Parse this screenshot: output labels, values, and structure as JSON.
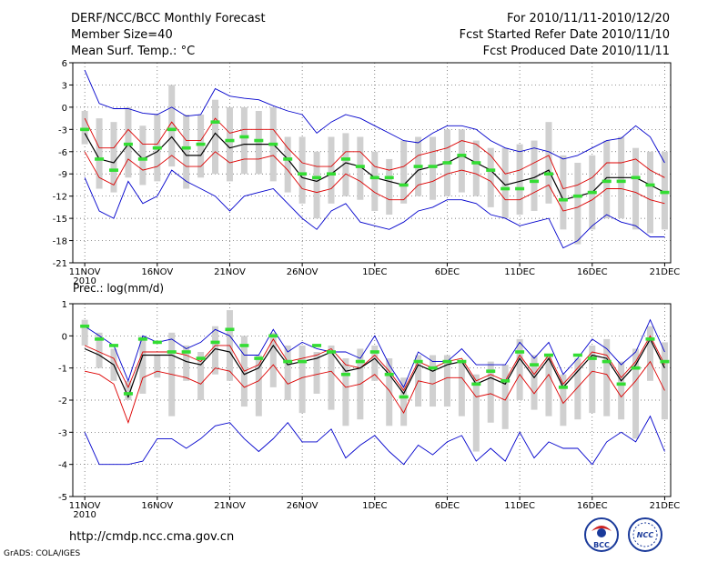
{
  "header": {
    "title": "DERF/NCC/BCC Monthly Forecast",
    "member_size": "Member Size=40",
    "variable": "Mean Surf. Temp.: °C",
    "period": "For 2010/11/11-2010/12/20",
    "started": "Fcst Started Refer Date 2010/11/10",
    "produced": "Fcst Produced Date 2010/11/11"
  },
  "footer": {
    "url": "http://cmdp.ncc.cma.gov.cn",
    "grads": "GrADS: COLA/IGES",
    "logo_bcc": "BCC",
    "logo_ncc": "NCC"
  },
  "colors": {
    "spread": "#0000cc",
    "percentile": "#dd0000",
    "mean": "#000000",
    "obs": "#33dd33",
    "box": "#d0d0d0"
  },
  "chart_data": [
    {
      "type": "line",
      "title": "Mean Surf. Temp.: °C",
      "xlabel": "",
      "ylabel": "°C",
      "ylim": [
        -21,
        6
      ],
      "yticks": [
        "6",
        "3",
        "0",
        "-3",
        "-6",
        "-9",
        "-12",
        "-15",
        "-18",
        "-21"
      ],
      "xlim": [
        0,
        40
      ],
      "xticks": [
        {
          "x": 0,
          "label": "11NOV",
          "sub": "2010"
        },
        {
          "x": 5,
          "label": "16NOV"
        },
        {
          "x": 10,
          "label": "21NOV"
        },
        {
          "x": 15,
          "label": "26NOV"
        },
        {
          "x": 20,
          "label": "1DEC"
        },
        {
          "x": 25,
          "label": "6DEC"
        },
        {
          "x": 30,
          "label": "11DEC"
        },
        {
          "x": 35,
          "label": "16DEC"
        },
        {
          "x": 40,
          "label": "21DEC"
        }
      ],
      "grid": true,
      "series": [
        {
          "name": "max",
          "color": "#0000cc",
          "values": [
            5,
            0.5,
            -0.2,
            -0.2,
            -0.8,
            -1,
            0,
            -1.2,
            -1,
            2.5,
            1.5,
            1.2,
            1,
            0.2,
            -0.5,
            -1,
            -3.5,
            -2,
            -1,
            -1.5,
            -2.5,
            -3.5,
            -4.5,
            -4.8,
            -3.5,
            -2.5,
            -2.5,
            -3,
            -4.5,
            -5.5,
            -6,
            -5.5,
            -6,
            -7,
            -6.5,
            -5.5,
            -4.5,
            -4.2,
            -2.5,
            -4,
            -7.5
          ]
        },
        {
          "name": "p_upper",
          "color": "#dd0000",
          "values": [
            -1.5,
            -5.5,
            -5.5,
            -3,
            -5,
            -5,
            -2,
            -4.5,
            -4.5,
            -1.5,
            -3.5,
            -3,
            -3,
            -3,
            -5.5,
            -7.5,
            -8,
            -8,
            -6,
            -6,
            -8,
            -8.5,
            -8,
            -6.5,
            -6,
            -5.5,
            -4.5,
            -5,
            -6.5,
            -9,
            -8.5,
            -7.5,
            -6.5,
            -11,
            -10.5,
            -9.5,
            -7.5,
            -7.5,
            -7,
            -8.5,
            -9.5
          ]
        },
        {
          "name": "mean",
          "color": "#000000",
          "values": [
            -3.5,
            -7,
            -7.5,
            -5,
            -7,
            -6,
            -4,
            -6.5,
            -6.5,
            -3.5,
            -5.5,
            -5,
            -5,
            -5,
            -7,
            -9.5,
            -10,
            -9,
            -7.5,
            -8,
            -9.5,
            -10,
            -10.5,
            -8.5,
            -8,
            -7.5,
            -6.5,
            -7.5,
            -8.5,
            -10.5,
            -10,
            -9.5,
            -8.5,
            -12.5,
            -12,
            -11.5,
            -9.5,
            -9.5,
            -9.5,
            -10.5,
            -11.5
          ]
        },
        {
          "name": "p_lower",
          "color": "#dd0000",
          "values": [
            -6,
            -9.5,
            -10.5,
            -7,
            -8.5,
            -8,
            -6.5,
            -8,
            -8,
            -6,
            -7.5,
            -7,
            -7,
            -6.5,
            -8.5,
            -11,
            -11.5,
            -11,
            -9,
            -10,
            -11.5,
            -12.5,
            -12.5,
            -10.5,
            -10,
            -9,
            -8.5,
            -9,
            -10,
            -12.5,
            -12.5,
            -11.5,
            -10.5,
            -14,
            -13.5,
            -12.5,
            -11,
            -11,
            -11.5,
            -12.5,
            -13
          ]
        },
        {
          "name": "min",
          "color": "#0000cc",
          "values": [
            -9.5,
            -14,
            -15,
            -10,
            -13,
            -12,
            -8.5,
            -10,
            -11,
            -12,
            -14,
            -12,
            -11.5,
            -11,
            -13,
            -15,
            -16.5,
            -14,
            -13,
            -15.5,
            -16,
            -16.5,
            -15.5,
            -14,
            -13.5,
            -12.5,
            -12.5,
            -13,
            -14.5,
            -15,
            -16,
            -15.5,
            -15,
            -19,
            -18,
            -16,
            -14.5,
            -15.5,
            -16,
            -17.5,
            -17.5
          ]
        }
      ],
      "box_top": [
        -0.5,
        -1.5,
        -2,
        0,
        -2.5,
        -1,
        3,
        -1,
        -1,
        1,
        0,
        0,
        -0.5,
        0,
        -4,
        -4,
        -6,
        -4,
        -3.5,
        -4,
        -6,
        -7,
        -4.5,
        -4,
        -4,
        -3,
        -3,
        -4.5,
        -5.5,
        -5.5,
        -5,
        -4.5,
        -2,
        -6.5,
        -7.5,
        -6.5,
        -4.5,
        -4,
        -5.5,
        -6,
        -6
      ],
      "box_bottom": [
        -5,
        -11,
        -11.5,
        -9.5,
        -10.5,
        -10,
        -8,
        -11,
        -9.5,
        -9,
        -10,
        -9,
        -9,
        -10,
        -11.5,
        -13,
        -15,
        -13,
        -12,
        -12.5,
        -14,
        -14.5,
        -13,
        -12,
        -12.5,
        -12,
        -11.5,
        -12,
        -13.5,
        -15,
        -14.5,
        -14,
        -13,
        -16.5,
        -18.5,
        -16.5,
        -15,
        -15,
        -16.5,
        -17,
        -16.5
      ],
      "observed": [
        -3,
        -7,
        -8.5,
        -5,
        -7,
        -5.5,
        -3,
        -5.5,
        -5,
        -2,
        -4.5,
        -4,
        -4.5,
        -5,
        -7,
        -9,
        -9.5,
        -9,
        -7,
        -8,
        -9.5,
        -9.5,
        -10.5,
        -8,
        -8,
        -7.5,
        -6.5,
        -7.5,
        -8.5,
        -11,
        -11,
        -10,
        -9,
        -12.5,
        -12,
        -11.5,
        -10,
        -10,
        -9.5,
        -10.5,
        -11.5
      ]
    },
    {
      "type": "line",
      "title": "Prec.: log(mm/d)",
      "xlabel": "",
      "ylabel": "log(mm/d)",
      "ylim": [
        -5,
        1
      ],
      "yticks": [
        "1",
        "0",
        "-1",
        "-2",
        "-3",
        "-4",
        "-5"
      ],
      "xlim": [
        0,
        40
      ],
      "xticks": [
        {
          "x": 0,
          "label": "11NOV",
          "sub": "2010"
        },
        {
          "x": 5,
          "label": "16NOV"
        },
        {
          "x": 10,
          "label": "21NOV"
        },
        {
          "x": 15,
          "label": "26NOV"
        },
        {
          "x": 20,
          "label": "1DEC"
        },
        {
          "x": 25,
          "label": "6DEC"
        },
        {
          "x": 30,
          "label": "11DEC"
        },
        {
          "x": 35,
          "label": "16DEC"
        },
        {
          "x": 40,
          "label": "21DEC"
        }
      ],
      "grid": true,
      "series": [
        {
          "name": "max",
          "color": "#0000cc",
          "values": [
            0.3,
            0,
            -0.3,
            -1.4,
            0,
            -0.2,
            -0.1,
            -0.4,
            -0.2,
            0.2,
            0,
            -0.6,
            -0.6,
            0.2,
            -0.5,
            -0.2,
            -0.4,
            -0.5,
            -0.5,
            -0.7,
            0,
            -0.9,
            -1.6,
            -0.5,
            -0.8,
            -0.8,
            -0.4,
            -0.9,
            -0.9,
            -0.9,
            -0.2,
            -0.7,
            -0.2,
            -1.2,
            -0.7,
            -0.1,
            -0.4,
            -0.9,
            -0.5,
            0.5,
            -0.5
          ]
        },
        {
          "name": "p_upper",
          "color": "#dd0000",
          "values": [
            -0.3,
            -0.5,
            -0.7,
            -1.6,
            -0.5,
            -0.5,
            -0.5,
            -0.6,
            -0.8,
            -0.3,
            -0.3,
            -1.1,
            -0.9,
            -0.1,
            -0.8,
            -0.7,
            -0.6,
            -0.4,
            -0.9,
            -1,
            -0.6,
            -1.1,
            -1.7,
            -0.8,
            -1,
            -0.8,
            -0.7,
            -1.4,
            -1.2,
            -1.4,
            -0.6,
            -1.2,
            -0.6,
            -1.5,
            -1,
            -0.5,
            -0.6,
            -1.3,
            -0.8,
            0,
            -0.9
          ]
        },
        {
          "name": "mean",
          "color": "#000000",
          "values": [
            -0.4,
            -0.6,
            -0.9,
            -1.9,
            -0.6,
            -0.6,
            -0.6,
            -0.8,
            -0.9,
            -0.4,
            -0.5,
            -1.2,
            -1,
            -0.3,
            -0.9,
            -0.8,
            -0.7,
            -0.5,
            -1.1,
            -1,
            -0.7,
            -1.2,
            -1.8,
            -0.9,
            -1.1,
            -0.9,
            -0.8,
            -1.5,
            -1.3,
            -1.5,
            -0.7,
            -1.3,
            -0.7,
            -1.6,
            -1.1,
            -0.6,
            -0.7,
            -1.4,
            -0.9,
            -0.1,
            -1
          ]
        },
        {
          "name": "p_lower",
          "color": "#dd0000",
          "values": [
            -1.1,
            -1.2,
            -1.5,
            -2.7,
            -1.3,
            -1.1,
            -1.2,
            -1.3,
            -1.5,
            -1,
            -1.1,
            -1.6,
            -1.4,
            -0.9,
            -1.5,
            -1.3,
            -1.2,
            -1.1,
            -1.6,
            -1.5,
            -1.2,
            -1.7,
            -2.4,
            -1.4,
            -1.5,
            -1.3,
            -1.3,
            -1.9,
            -1.8,
            -2,
            -1.2,
            -1.8,
            -1.2,
            -2.1,
            -1.6,
            -1.1,
            -1.2,
            -1.9,
            -1.4,
            -0.8,
            -1.7
          ]
        },
        {
          "name": "min",
          "color": "#0000cc",
          "values": [
            -3,
            -4,
            -4,
            -4,
            -3.9,
            -3.2,
            -3.2,
            -3.5,
            -3.2,
            -2.8,
            -2.7,
            -3.2,
            -3.6,
            -3.2,
            -2.7,
            -3.3,
            -3.3,
            -2.9,
            -3.8,
            -3.4,
            -3.1,
            -3.6,
            -4,
            -3.4,
            -3.7,
            -3.3,
            -3.1,
            -3.9,
            -3.5,
            -3.9,
            -3,
            -3.8,
            -3.3,
            -3.5,
            -3.5,
            -4,
            -3.3,
            -3,
            -3.3,
            -2.5,
            -3.6
          ]
        },
        {
          "name": "obs_mean_track",
          "color": "#000000",
          "values": []
        }
      ],
      "box_top": [
        0.5,
        0.1,
        -0.4,
        -1.4,
        0,
        -0.6,
        0.1,
        -0.3,
        -0.5,
        0.3,
        0.8,
        0,
        -0.6,
        0.1,
        -0.3,
        -0.3,
        -0.5,
        -0.3,
        -0.7,
        -0.4,
        -0.3,
        -0.7,
        -1.3,
        -0.6,
        -0.6,
        -0.6,
        -0.8,
        -1.2,
        -0.8,
        -0.9,
        -0.1,
        -0.6,
        -0.6,
        -1.2,
        -0.7,
        -0.3,
        -0.1,
        -0.8,
        -0.4,
        0.3,
        -0.2
      ],
      "box_bottom": [
        -0.3,
        -1,
        -1.4,
        -2,
        -1.8,
        -1.3,
        -2.5,
        -1.4,
        -2,
        -1.2,
        -1.4,
        -2.2,
        -2.5,
        -1.6,
        -2,
        -2.4,
        -1.8,
        -2.3,
        -2.8,
        -2.6,
        -1.4,
        -2.8,
        -2.8,
        -2.2,
        -2.2,
        -2.2,
        -2.5,
        -3.6,
        -2.7,
        -2.9,
        -2,
        -2.3,
        -2.5,
        -2.8,
        -2.6,
        -2.4,
        -2.5,
        -2.6,
        -3.2,
        -1.4,
        -2.6
      ],
      "observed": [
        0.3,
        -0.1,
        -0.3,
        -1.8,
        -0.1,
        -0.2,
        -0.5,
        -0.5,
        -0.7,
        -0.2,
        0.2,
        -0.3,
        -0.7,
        0,
        -0.8,
        -0.8,
        -0.3,
        -0.5,
        -1.2,
        -0.8,
        -0.5,
        -1.2,
        -1.9,
        -0.8,
        -1,
        -0.8,
        -0.8,
        -1.5,
        -1.1,
        -1.4,
        -0.5,
        -0.9,
        -0.6,
        -1.6,
        -0.6,
        -0.7,
        -0.8,
        -1.5,
        -1,
        -0.1,
        -0.8
      ]
    }
  ]
}
